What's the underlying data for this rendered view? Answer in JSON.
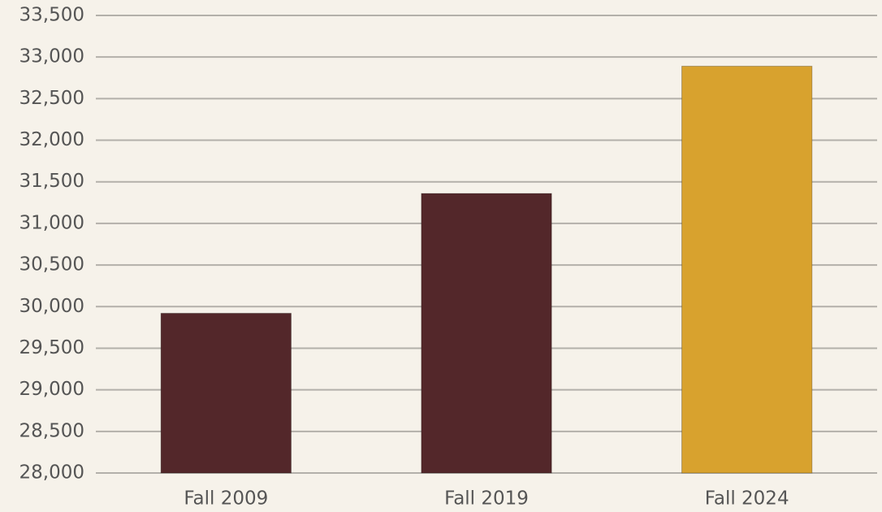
{
  "chart_data": {
    "type": "bar",
    "categories": [
      "Fall 2009",
      "Fall 2019",
      "Fall 2024"
    ],
    "values": [
      29920,
      31360,
      32890
    ],
    "colors": [
      "#53272a",
      "#53272a",
      "#d8a22e"
    ],
    "ylim": [
      28000,
      33500
    ],
    "yticks": [
      {
        "value": 28000,
        "label": "28,000"
      },
      {
        "value": 28500,
        "label": "28,500"
      },
      {
        "value": 29000,
        "label": "29,000"
      },
      {
        "value": 29500,
        "label": "29,500"
      },
      {
        "value": 30000,
        "label": "30,000"
      },
      {
        "value": 30500,
        "label": "30,500"
      },
      {
        "value": 31000,
        "label": "31,000"
      },
      {
        "value": 31500,
        "label": "31,500"
      },
      {
        "value": 32000,
        "label": "32,000"
      },
      {
        "value": 32500,
        "label": "32,500"
      },
      {
        "value": 33000,
        "label": "33,000"
      },
      {
        "value": 33500,
        "label": "33,500"
      }
    ],
    "grid": true
  }
}
